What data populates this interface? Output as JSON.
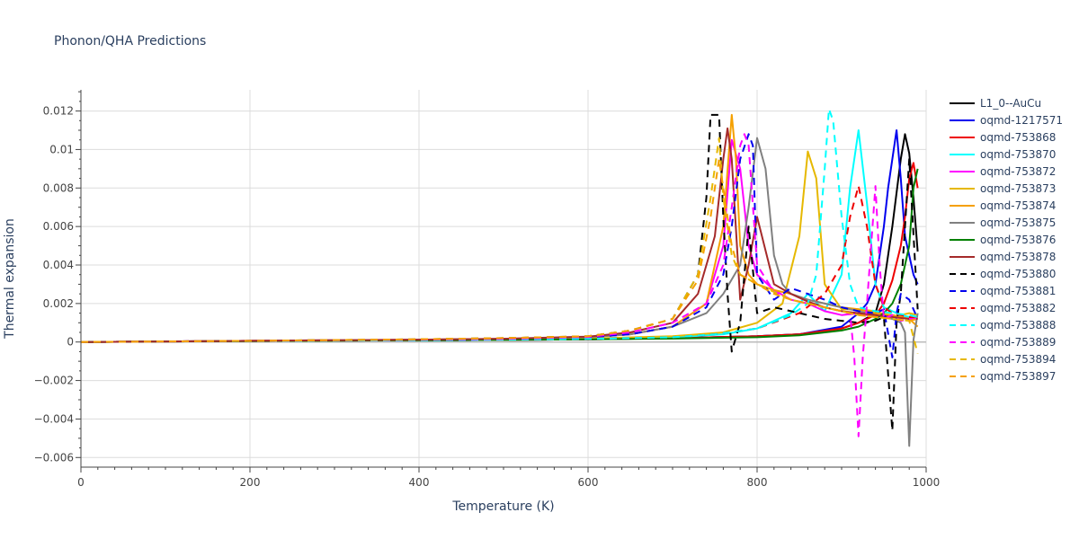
{
  "chart_data": {
    "type": "line",
    "title": "Phonon/QHA Predictions",
    "xlabel": "Temperature (K)",
    "ylabel": "Thermal expansion",
    "xlim": [
      0,
      1000
    ],
    "ylim": [
      -0.0065,
      0.0131
    ],
    "x_ticks": [
      0,
      200,
      400,
      600,
      800,
      1000
    ],
    "x_tick_labels": [
      "0",
      "200",
      "400",
      "600",
      "800",
      "1000"
    ],
    "y_ticks": [
      -0.006,
      -0.004,
      -0.002,
      0,
      0.002,
      0.004,
      0.006,
      0.008,
      0.01,
      0.012
    ],
    "y_tick_labels": [
      "−0.006",
      "−0.004",
      "−0.002",
      "0",
      "0.002",
      "0.004",
      "0.006",
      "0.008",
      "0.01",
      "0.012"
    ],
    "grid": true,
    "legend_position": "right",
    "series": [
      {
        "name": "L1_0--AuCu",
        "color": "#000000",
        "dash": "solid",
        "x": [
          0,
          100,
          200,
          300,
          400,
          500,
          600,
          700,
          800,
          850,
          900,
          920,
          940,
          950,
          960,
          970,
          975,
          980,
          985,
          990
        ],
        "y": [
          0,
          3e-05,
          5e-05,
          7e-05,
          9e-05,
          0.00011,
          0.00014,
          0.0002,
          0.0003,
          0.0004,
          0.0007,
          0.001,
          0.0015,
          0.003,
          0.006,
          0.0095,
          0.0108,
          0.0098,
          0.0075,
          0.0047
        ]
      },
      {
        "name": "oqmd-1217571",
        "color": "#0000ee",
        "dash": "solid",
        "x": [
          0,
          100,
          200,
          300,
          400,
          500,
          600,
          700,
          800,
          850,
          900,
          920,
          930,
          940,
          950,
          955,
          960,
          965,
          970,
          975,
          980,
          985,
          990
        ],
        "y": [
          0,
          3e-05,
          5e-05,
          7e-05,
          9e-05,
          0.00011,
          0.00014,
          0.0002,
          0.0003,
          0.0004,
          0.0008,
          0.0015,
          0.002,
          0.003,
          0.006,
          0.008,
          0.0095,
          0.011,
          0.0085,
          0.0055,
          0.0045,
          0.0035,
          0.003
        ]
      },
      {
        "name": "oqmd-753868",
        "color": "#ee0000",
        "dash": "solid",
        "x": [
          0,
          100,
          200,
          300,
          400,
          500,
          600,
          700,
          800,
          850,
          900,
          920,
          940,
          950,
          960,
          970,
          975,
          980,
          985,
          990
        ],
        "y": [
          0,
          3e-05,
          5e-05,
          7e-05,
          9e-05,
          0.00011,
          0.00014,
          0.0002,
          0.0003,
          0.0004,
          0.0007,
          0.001,
          0.0014,
          0.002,
          0.0032,
          0.005,
          0.0065,
          0.0085,
          0.0093,
          0.008
        ]
      },
      {
        "name": "oqmd-753870",
        "color": "#00ffff",
        "dash": "solid",
        "x": [
          0,
          100,
          200,
          300,
          400,
          500,
          600,
          700,
          760,
          800,
          840,
          860,
          880,
          900,
          910,
          920,
          930,
          940,
          950,
          960,
          970,
          980,
          990
        ],
        "y": [
          0,
          3e-05,
          5e-05,
          7e-05,
          9e-05,
          0.00012,
          0.00016,
          0.00025,
          0.0004,
          0.0007,
          0.0015,
          0.0025,
          0.0016,
          0.0035,
          0.008,
          0.011,
          0.0072,
          0.003,
          0.0018,
          0.0016,
          0.0014,
          0.0013,
          0.0012
        ]
      },
      {
        "name": "oqmd-753872",
        "color": "#ff00ff",
        "dash": "solid",
        "x": [
          0,
          100,
          200,
          300,
          400,
          500,
          600,
          650,
          700,
          740,
          760,
          770,
          780,
          790,
          800,
          820,
          840,
          860,
          880,
          900,
          920,
          940,
          960,
          980,
          990
        ],
        "y": [
          0,
          3e-05,
          6e-05,
          9e-05,
          0.00012,
          0.00016,
          0.00025,
          0.0004,
          0.0008,
          0.002,
          0.005,
          0.0105,
          0.009,
          0.005,
          0.0035,
          0.0027,
          0.0022,
          0.002,
          0.0016,
          0.0014,
          0.0015,
          0.0013,
          0.0014,
          0.0012,
          0.0012
        ]
      },
      {
        "name": "oqmd-753873",
        "color": "#e6b800",
        "dash": "solid",
        "x": [
          0,
          100,
          200,
          300,
          400,
          500,
          600,
          700,
          760,
          800,
          830,
          850,
          860,
          870,
          880,
          900,
          920,
          940,
          960,
          980,
          990
        ],
        "y": [
          0,
          3e-05,
          5e-05,
          7e-05,
          0.0001,
          0.00013,
          0.00018,
          0.0003,
          0.0005,
          0.001,
          0.002,
          0.0055,
          0.0099,
          0.0085,
          0.003,
          0.0017,
          0.0017,
          0.0016,
          0.0013,
          0.0015,
          0.0014
        ]
      },
      {
        "name": "oqmd-753874",
        "color": "#f5a000",
        "dash": "solid",
        "x": [
          0,
          100,
          200,
          300,
          400,
          500,
          600,
          650,
          700,
          740,
          760,
          770,
          775,
          780,
          790,
          800,
          820,
          840,
          860,
          880,
          900,
          920,
          940,
          960,
          980,
          990
        ],
        "y": [
          0,
          3e-05,
          6e-05,
          9e-05,
          0.00012,
          0.00016,
          0.00025,
          0.0004,
          0.0008,
          0.002,
          0.006,
          0.0118,
          0.0095,
          0.005,
          0.0035,
          0.003,
          0.0027,
          0.0025,
          0.0022,
          0.002,
          0.0018,
          0.0017,
          0.0015,
          0.0014,
          0.0012,
          0.0008
        ]
      },
      {
        "name": "oqmd-753875",
        "color": "#808080",
        "dash": "solid",
        "x": [
          0,
          100,
          200,
          300,
          400,
          500,
          600,
          650,
          700,
          740,
          760,
          780,
          790,
          800,
          810,
          820,
          830,
          840,
          860,
          880,
          900,
          920,
          940,
          960,
          970,
          975,
          980,
          985,
          990
        ],
        "y": [
          0,
          3e-05,
          6e-05,
          9e-05,
          0.00012,
          0.00016,
          0.00025,
          0.0004,
          0.0008,
          0.0015,
          0.0025,
          0.004,
          0.007,
          0.0106,
          0.009,
          0.0045,
          0.003,
          0.0025,
          0.0022,
          0.002,
          0.0018,
          0.0016,
          0.0014,
          0.0012,
          0.001,
          0.0005,
          -0.0054,
          0.0001,
          0.0015
        ]
      },
      {
        "name": "oqmd-753876",
        "color": "#008000",
        "dash": "solid",
        "x": [
          0,
          100,
          200,
          300,
          400,
          500,
          600,
          700,
          800,
          850,
          900,
          920,
          940,
          950,
          960,
          970,
          980,
          985,
          990
        ],
        "y": [
          0,
          3e-05,
          5e-05,
          7e-05,
          9e-05,
          0.00011,
          0.00014,
          0.00018,
          0.00025,
          0.00035,
          0.0006,
          0.0008,
          0.0012,
          0.0015,
          0.002,
          0.003,
          0.005,
          0.008,
          0.009
        ]
      },
      {
        "name": "oqmd-753878",
        "color": "#a52a2a",
        "dash": "solid",
        "x": [
          0,
          100,
          200,
          300,
          400,
          500,
          600,
          650,
          700,
          730,
          750,
          760,
          765,
          770,
          780,
          790,
          800,
          820,
          840,
          860,
          880,
          900,
          920,
          940,
          960,
          980,
          990
        ],
        "y": [
          0,
          3e-05,
          6e-05,
          9e-05,
          0.00012,
          0.00017,
          0.00028,
          0.0005,
          0.001,
          0.0025,
          0.0055,
          0.0095,
          0.0111,
          0.0095,
          0.0022,
          0.004,
          0.0065,
          0.003,
          0.0025,
          0.0021,
          0.0018,
          0.0016,
          0.0015,
          0.0014,
          0.0013,
          0.0012,
          0.0012
        ]
      },
      {
        "name": "oqmd-753880",
        "color": "#000000",
        "dash": "dash",
        "x": [
          0,
          100,
          200,
          300,
          400,
          500,
          600,
          650,
          700,
          730,
          740,
          745,
          755,
          760,
          765,
          770,
          780,
          790,
          800,
          820,
          840,
          860,
          880,
          900,
          920,
          940,
          950,
          960,
          965,
          970,
          980,
          990
        ],
        "y": [
          0,
          3e-05,
          6e-05,
          0.0001,
          0.00014,
          0.0002,
          0.0003,
          0.0006,
          0.0012,
          0.0035,
          0.0075,
          0.0118,
          0.0118,
          0.0065,
          0.0025,
          -0.0005,
          0.001,
          0.006,
          0.0015,
          0.0018,
          0.0016,
          0.0014,
          0.0012,
          0.0011,
          0.001,
          0.0011,
          0.0013,
          -0.0046,
          0.001,
          0.0025,
          0.0095,
          0.0017
        ]
      },
      {
        "name": "oqmd-753881",
        "color": "#0000ee",
        "dash": "dash",
        "x": [
          0,
          100,
          200,
          300,
          400,
          500,
          600,
          650,
          700,
          740,
          760,
          770,
          780,
          790,
          795,
          800,
          820,
          840,
          860,
          880,
          900,
          920,
          940,
          950,
          960,
          965,
          970,
          980,
          990
        ],
        "y": [
          0,
          3e-05,
          6e-05,
          9e-05,
          0.00012,
          0.00016,
          0.00025,
          0.0004,
          0.0008,
          0.0018,
          0.0035,
          0.006,
          0.0095,
          0.0108,
          0.0102,
          0.0035,
          0.0022,
          0.0028,
          0.0025,
          0.0022,
          0.0018,
          0.0016,
          0.0015,
          0.0017,
          -0.0008,
          0.0015,
          0.0025,
          0.0022,
          0.0012
        ]
      },
      {
        "name": "oqmd-753882",
        "color": "#ee0000",
        "dash": "dash",
        "x": [
          0,
          100,
          200,
          300,
          400,
          500,
          600,
          700,
          750,
          800,
          850,
          880,
          900,
          910,
          920,
          930,
          940,
          950,
          960,
          970,
          980,
          990
        ],
        "y": [
          0,
          3e-05,
          5e-05,
          7e-05,
          9e-05,
          0.00012,
          0.00016,
          0.00025,
          0.0004,
          0.0007,
          0.0015,
          0.0025,
          0.004,
          0.0065,
          0.0081,
          0.006,
          0.003,
          0.0018,
          0.0015,
          0.0014,
          0.0013,
          0.0012
        ]
      },
      {
        "name": "oqmd-753888",
        "color": "#00ffff",
        "dash": "dash",
        "x": [
          0,
          100,
          200,
          300,
          400,
          500,
          600,
          700,
          750,
          800,
          840,
          860,
          870,
          880,
          885,
          890,
          900,
          910,
          920,
          940,
          960,
          980,
          990
        ],
        "y": [
          0,
          3e-05,
          5e-05,
          7e-05,
          9e-05,
          0.00012,
          0.00016,
          0.00025,
          0.0004,
          0.0007,
          0.0014,
          0.002,
          0.0035,
          0.009,
          0.0121,
          0.0115,
          0.0065,
          0.003,
          0.0018,
          0.0016,
          0.0015,
          0.0014,
          0.0013
        ]
      },
      {
        "name": "oqmd-753889",
        "color": "#ff00ff",
        "dash": "dash",
        "x": [
          0,
          100,
          200,
          300,
          400,
          500,
          600,
          650,
          700,
          740,
          760,
          770,
          780,
          785,
          790,
          800,
          820,
          840,
          860,
          880,
          900,
          910,
          915,
          920,
          925,
          930,
          940,
          945,
          950,
          960,
          970,
          980,
          990
        ],
        "y": [
          0,
          3e-05,
          6e-05,
          9e-05,
          0.00012,
          0.00016,
          0.00026,
          0.0005,
          0.001,
          0.002,
          0.004,
          0.007,
          0.0102,
          0.0108,
          0.0102,
          0.004,
          0.0026,
          0.0022,
          0.002,
          0.0018,
          0.0016,
          0.0015,
          -0.0008,
          -0.0049,
          -0.0008,
          0.002,
          0.0081,
          0.004,
          0.0012,
          0.0014,
          0.0011,
          0.0012,
          0.0012
        ]
      },
      {
        "name": "oqmd-753894",
        "color": "#e6b800",
        "dash": "dash",
        "x": [
          0,
          100,
          200,
          300,
          400,
          500,
          600,
          650,
          700,
          730,
          745,
          755,
          760,
          770,
          780,
          800,
          820,
          840,
          860,
          880,
          900,
          920,
          940,
          960,
          980,
          990
        ],
        "y": [
          0,
          3e-05,
          6e-05,
          0.0001,
          0.00014,
          0.0002,
          0.0003,
          0.0006,
          0.0012,
          0.0035,
          0.0075,
          0.0106,
          0.0075,
          0.0045,
          0.0035,
          0.003,
          0.0026,
          0.0022,
          0.002,
          0.0018,
          0.0016,
          0.0014,
          0.0013,
          0.0012,
          0.0011,
          -0.0006
        ]
      },
      {
        "name": "oqmd-753897",
        "color": "#f5a000",
        "dash": "dash",
        "x": [
          0,
          100,
          200,
          300,
          400,
          500,
          600,
          650,
          700,
          730,
          745,
          755,
          760,
          770,
          780,
          800,
          820,
          840,
          860,
          880,
          900,
          920,
          940,
          960,
          980,
          990
        ],
        "y": [
          0,
          3e-05,
          6e-05,
          0.0001,
          0.00014,
          0.0002,
          0.0003,
          0.0006,
          0.0012,
          0.0032,
          0.0065,
          0.0095,
          0.008,
          0.005,
          0.0035,
          0.003,
          0.0025,
          0.0022,
          0.002,
          0.0018,
          0.0016,
          0.0014,
          0.0013,
          0.0012,
          0.0011,
          0.0012
        ]
      }
    ]
  }
}
